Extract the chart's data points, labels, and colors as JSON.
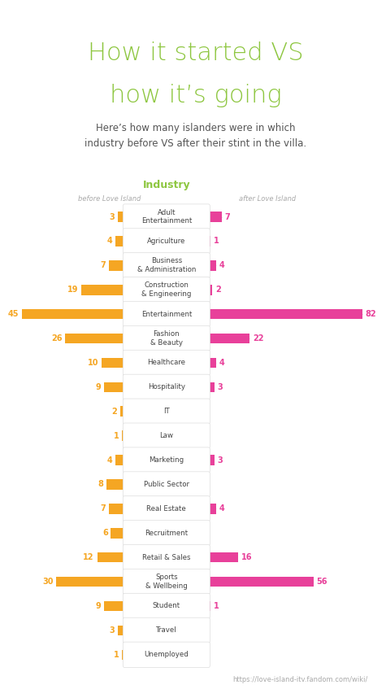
{
  "title_line1": "How it started VS",
  "title_line2": "how it’s going",
  "subtitle": "Here’s how many islanders were in which\nindustry before VS after their stint in the villa.",
  "col_header": "Industry",
  "left_label": "before Love Island",
  "right_label": "after Love Island",
  "source": "https://love-island-itv.fandom.com/wiki/",
  "categories": [
    "Adult\nEntertainment",
    "Agriculture",
    "Business\n& Administration",
    "Construction\n& Engineering",
    "Entertainment",
    "Fashion\n& Beauty",
    "Healthcare",
    "Hospitality",
    "IT",
    "Law",
    "Marketing",
    "Public Sector",
    "Real Estate",
    "Recruitment",
    "Retail & Sales",
    "Sports\n& Wellbeing",
    "Student",
    "Travel",
    "Unemployed"
  ],
  "before": [
    3,
    4,
    7,
    19,
    45,
    26,
    10,
    9,
    2,
    1,
    4,
    8,
    7,
    6,
    12,
    30,
    9,
    3,
    1
  ],
  "after": [
    7,
    1,
    4,
    2,
    82,
    22,
    4,
    3,
    0,
    0,
    3,
    0,
    4,
    0,
    16,
    56,
    1,
    0,
    0
  ],
  "before_color": "#F5A623",
  "after_color": "#E8409A",
  "title_color": "#8DC63F",
  "header_color": "#8DC63F",
  "label_color": "#AAAAAA",
  "number_before_color": "#F5A623",
  "number_after_color": "#E8409A",
  "bg_color": "#FFFFFF",
  "top_bar_color": "#8DC63F",
  "max_before": 45,
  "max_after": 82
}
